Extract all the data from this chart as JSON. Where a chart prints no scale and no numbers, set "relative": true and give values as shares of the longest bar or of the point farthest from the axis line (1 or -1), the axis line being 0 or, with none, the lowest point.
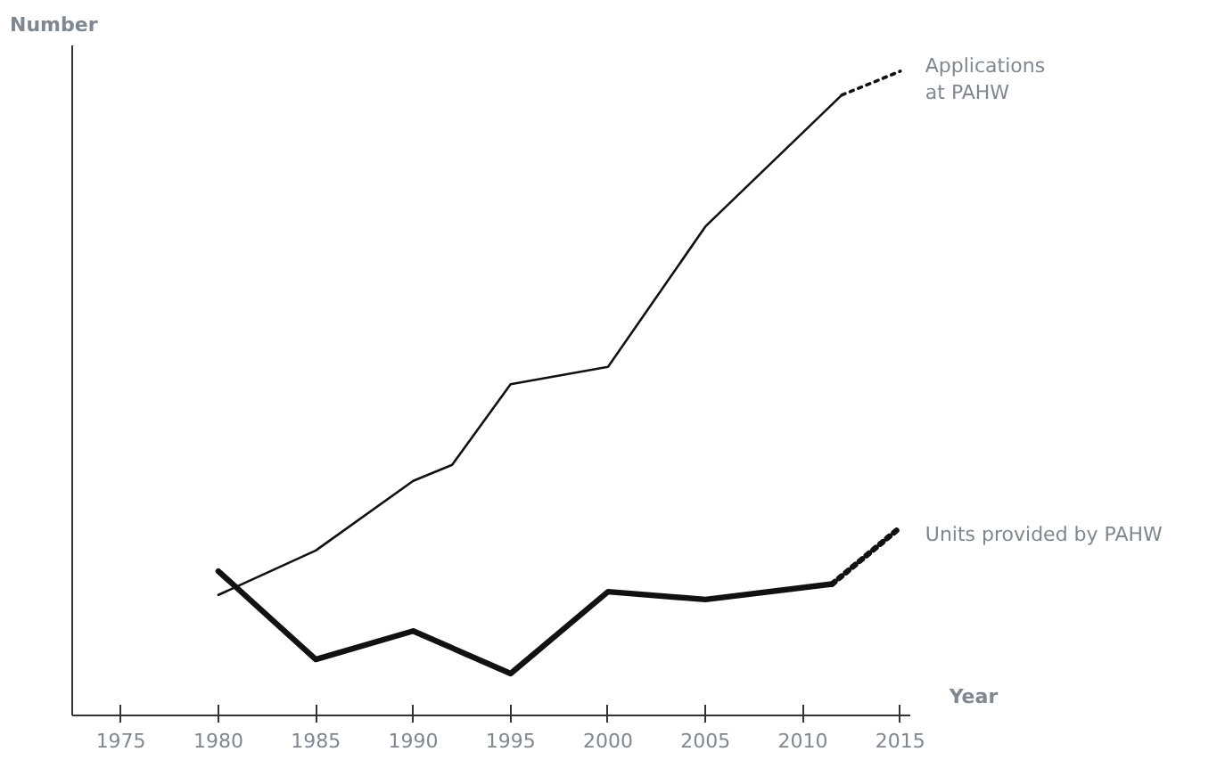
{
  "chart_data": {
    "type": "line",
    "ylabel": "Number",
    "xlabel": "Year",
    "relative": true,
    "xlim": [
      1972.5,
      2015.5
    ],
    "xticks": [
      1975,
      1980,
      1985,
      1990,
      1995,
      2000,
      2005,
      2010,
      2015
    ],
    "series": [
      {
        "color": "#111111",
        "line_style": "solid",
        "x": [
          1980,
          1985,
          1990,
          1992,
          1995,
          2000,
          2005,
          2012
        ],
        "values": [
          0.187,
          0.256,
          0.364,
          0.389,
          0.514,
          0.541,
          0.759,
          0.963
        ]
      },
      {
        "name": "Applications\nat PAHW",
        "color": "#111111",
        "line_style": "dotted",
        "x": [
          2012,
          2015
        ],
        "values": [
          0.963,
          1.0
        ]
      },
      {
        "color": "#111111",
        "line_style": "solid",
        "x": [
          1980,
          1985,
          1990,
          1995,
          2000,
          2005,
          2011.5
        ],
        "values": [
          0.224,
          0.087,
          0.131,
          0.065,
          0.192,
          0.18,
          0.204
        ]
      },
      {
        "name": "Units provided by PAHW",
        "color": "#111111",
        "line_style": "dotted",
        "x": [
          2011.5,
          2015
        ],
        "values": [
          0.204,
          0.292
        ]
      }
    ],
    "grid": false,
    "marker": "none"
  }
}
